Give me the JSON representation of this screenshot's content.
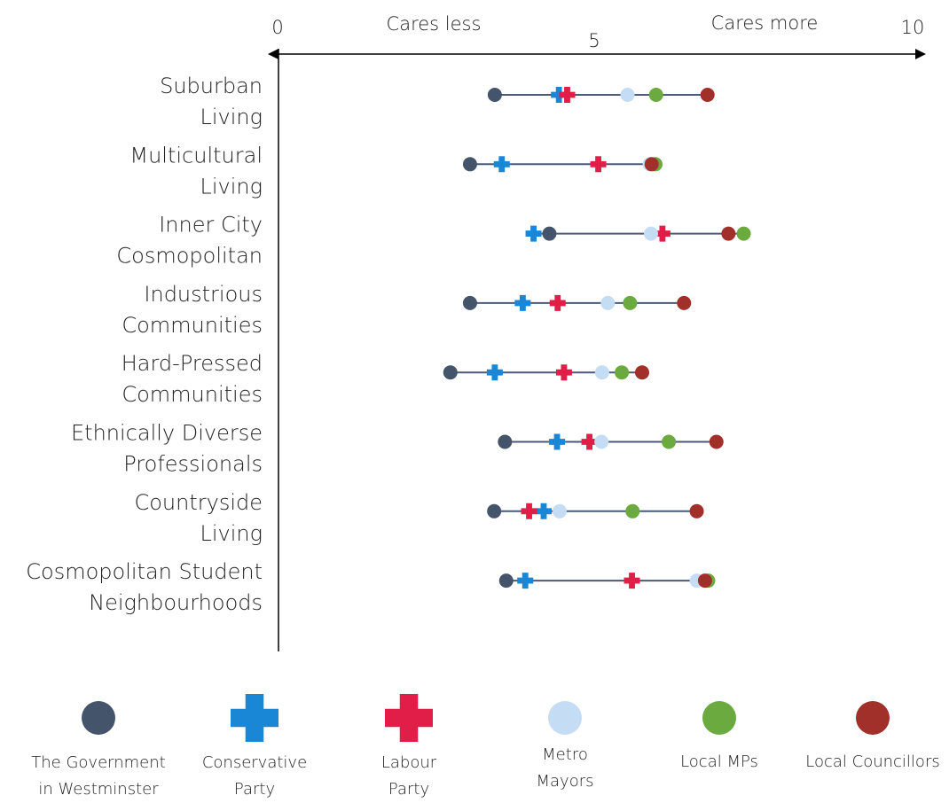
{
  "chart_data": {
    "type": "scatter",
    "x_axis": {
      "min": 0,
      "max": 10,
      "ticks": [
        {
          "value": 0,
          "label": "0"
        },
        {
          "value": 5,
          "label": "5"
        },
        {
          "value": 10,
          "label": "10"
        }
      ],
      "left_caption": "Cares less",
      "right_caption": "Cares more"
    },
    "grid": false,
    "legend_position": "bottom",
    "categories": [
      [
        "Suburban",
        "Living"
      ],
      [
        "Multicultural",
        "Living"
      ],
      [
        "Inner City",
        "Cosmopolitan"
      ],
      [
        "Industrious",
        "Communities"
      ],
      [
        "Hard-Pressed",
        "Communities"
      ],
      [
        "Ethnically Diverse",
        "Professionals"
      ],
      [
        "Countryside",
        "Living"
      ],
      [
        "Cosmopolitan Student",
        "Neighbourhoods"
      ]
    ],
    "series": [
      {
        "name": "The Government in Westminster",
        "legend_label": [
          "The Government",
          "in Westminster"
        ],
        "marker": "circle",
        "color": "#44546a",
        "values": [
          3.42,
          3.03,
          4.28,
          3.03,
          2.72,
          3.58,
          3.41,
          3.6
        ]
      },
      {
        "name": "Conservative Party",
        "legend_label": [
          "Conservative",
          "Party"
        ],
        "marker": "plus",
        "color": "#1a86d6",
        "values": [
          4.43,
          3.53,
          4.03,
          3.86,
          3.42,
          4.4,
          4.19,
          3.9
        ]
      },
      {
        "name": "Labour Party",
        "legend_label": [
          "Labour",
          "Party"
        ],
        "marker": "plus",
        "color": "#e01e48",
        "values": [
          4.56,
          5.05,
          6.06,
          4.41,
          4.51,
          4.91,
          3.96,
          5.58
        ]
      },
      {
        "name": "Metro Mayors",
        "legend_label": [
          "Metro",
          "Mayors"
        ],
        "marker": "circle",
        "color": "#c5dcf5",
        "values": [
          5.51,
          5.86,
          5.88,
          5.2,
          5.11,
          5.1,
          4.44,
          6.6
        ]
      },
      {
        "name": "Local MPs",
        "legend_label": [
          "Local MPs"
        ],
        "marker": "circle",
        "color": "#6aaa3f",
        "values": [
          5.96,
          5.95,
          7.34,
          5.55,
          5.42,
          6.16,
          5.59,
          6.78
        ]
      },
      {
        "name": "Local Councillors",
        "legend_label": [
          "Local Councillors"
        ],
        "marker": "circle",
        "color": "#a1302a",
        "values": [
          6.77,
          5.89,
          7.1,
          6.4,
          5.74,
          6.91,
          6.6,
          6.73
        ]
      }
    ]
  }
}
